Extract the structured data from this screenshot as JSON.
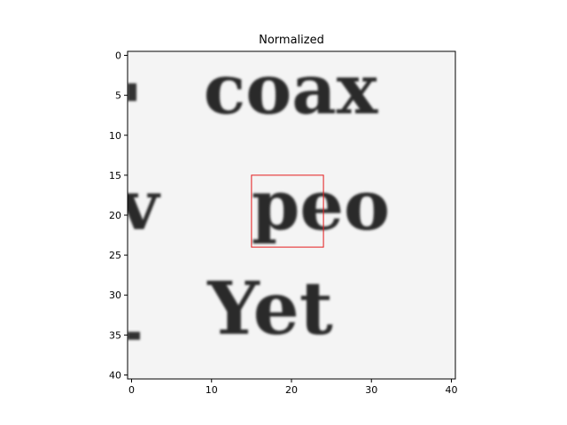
{
  "chart_data": {
    "type": "heatmap",
    "title": "Normalized",
    "xlabel": "",
    "ylabel": "",
    "xlim": [
      -0.5,
      40.5
    ],
    "ylim": [
      40.5,
      -0.5
    ],
    "x_ticks": [
      0,
      10,
      20,
      30,
      40
    ],
    "y_ticks": [
      0,
      5,
      10,
      15,
      20,
      25,
      30,
      35,
      40
    ],
    "colormap": "gray",
    "background_color": "#f4f4f4",
    "image_text_rows": [
      {
        "text": "coax",
        "row_center": 5.0
      },
      {
        "text": "v",
        "row_center": 19.5
      },
      {
        "text": "peo",
        "row_center": 19.5
      },
      {
        "text": "Yet",
        "row_center": 32.5
      }
    ],
    "highlight_box": {
      "x0": 15,
      "x1": 24,
      "y0": 15,
      "y1": 24,
      "color": "#e41a1c"
    }
  }
}
